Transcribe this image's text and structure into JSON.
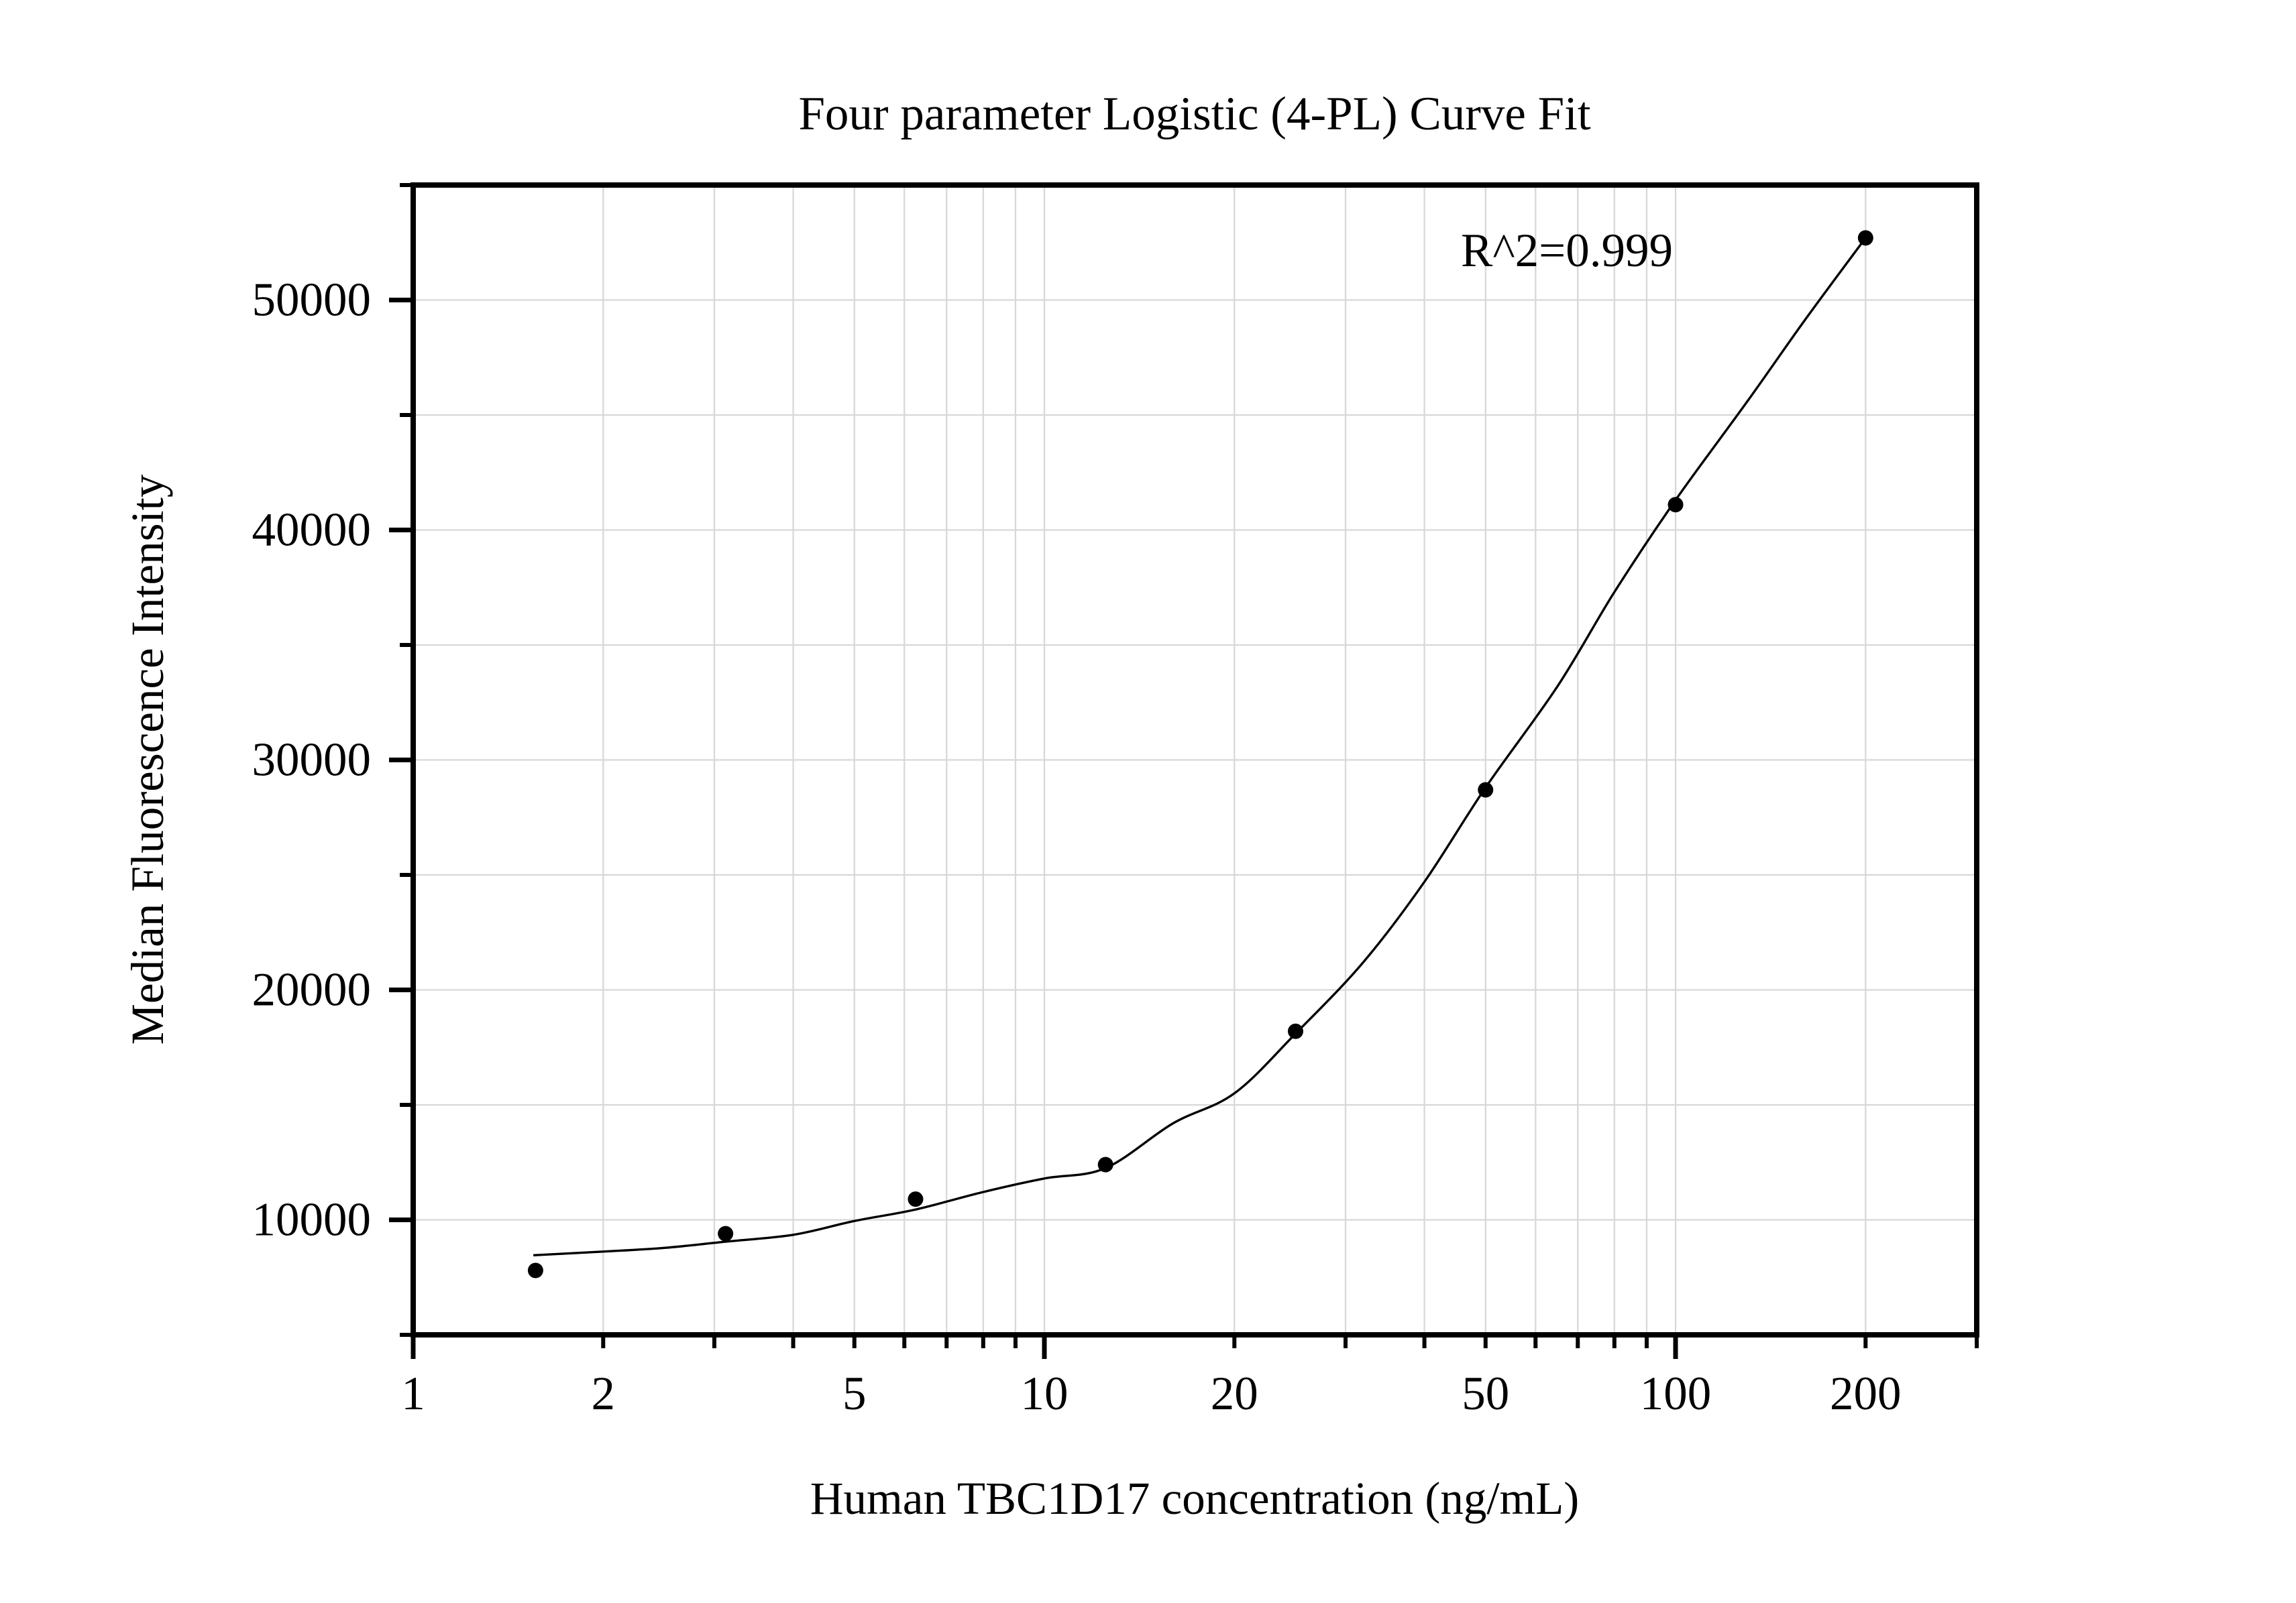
{
  "chart_data": {
    "type": "scatter",
    "title": "Four parameter Logistic (4-PL) Curve Fit",
    "xlabel": "Human TBC1D17 concentration (ng/mL)",
    "ylabel": "Median Fluorescence Intensity",
    "annotation": "R^2=0.999",
    "x_scale": "log",
    "y_scale": "linear",
    "xlim": [
      1,
      300
    ],
    "ylim": [
      5000,
      55000
    ],
    "grid": true,
    "legend": "none",
    "x_tick_labels": [
      {
        "value": 1,
        "label": "1"
      },
      {
        "value": 2,
        "label": "2"
      },
      {
        "value": 5,
        "label": "5"
      },
      {
        "value": 10,
        "label": "10"
      },
      {
        "value": 20,
        "label": "20"
      },
      {
        "value": 50,
        "label": "50"
      },
      {
        "value": 100,
        "label": "100"
      },
      {
        "value": 200,
        "label": "200"
      }
    ],
    "y_tick_labels": [
      {
        "value": 10000,
        "label": "10000"
      },
      {
        "value": 20000,
        "label": "20000"
      },
      {
        "value": 30000,
        "label": "30000"
      },
      {
        "value": 40000,
        "label": "40000"
      },
      {
        "value": 50000,
        "label": "50000"
      }
    ],
    "x_major_ticks": [
      1,
      10,
      100
    ],
    "x_minor_ticks": [
      2,
      3,
      4,
      5,
      6,
      7,
      8,
      9,
      20,
      30,
      40,
      50,
      60,
      70,
      80,
      90,
      200,
      300
    ],
    "y_major_ticks": [
      10000,
      20000,
      30000,
      40000,
      50000
    ],
    "y_minor_ticks": [
      5000,
      15000,
      25000,
      35000,
      45000,
      55000
    ],
    "x_gridlines": [
      2,
      3,
      4,
      5,
      6,
      7,
      8,
      9,
      10,
      20,
      30,
      40,
      50,
      60,
      70,
      80,
      90,
      100,
      200
    ],
    "y_gridlines": [
      10000,
      15000,
      20000,
      25000,
      30000,
      35000,
      40000,
      45000,
      50000
    ],
    "series": [
      {
        "name": "standard-points",
        "type": "scatter",
        "points": [
          [
            1.5625,
            7800
          ],
          [
            3.125,
            9400
          ],
          [
            6.25,
            10900
          ],
          [
            12.5,
            12400
          ],
          [
            25,
            18200
          ],
          [
            50,
            28700
          ],
          [
            100,
            41100
          ],
          [
            200,
            52700
          ]
        ]
      },
      {
        "name": "4pl-fit-curve",
        "type": "line",
        "points": [
          [
            1.55,
            8460
          ],
          [
            2,
            8620
          ],
          [
            2.5,
            8780
          ],
          [
            3.125,
            9050
          ],
          [
            4,
            9350
          ],
          [
            5,
            9950
          ],
          [
            6.25,
            10450
          ],
          [
            8,
            11210
          ],
          [
            10,
            11800
          ],
          [
            12.5,
            12250
          ],
          [
            16,
            14200
          ],
          [
            20,
            15500
          ],
          [
            25,
            18100
          ],
          [
            32,
            21200
          ],
          [
            40,
            24700
          ],
          [
            50,
            28800
          ],
          [
            65,
            33200
          ],
          [
            80,
            37300
          ],
          [
            100,
            41300
          ],
          [
            130,
            45600
          ],
          [
            160,
            49100
          ],
          [
            200,
            52700
          ]
        ]
      }
    ],
    "colors": {
      "marker": "#000000",
      "curve": "#000000",
      "grid": "#d8d8d8",
      "axis": "#000000",
      "text": "#000000",
      "background": "#ffffff"
    }
  }
}
